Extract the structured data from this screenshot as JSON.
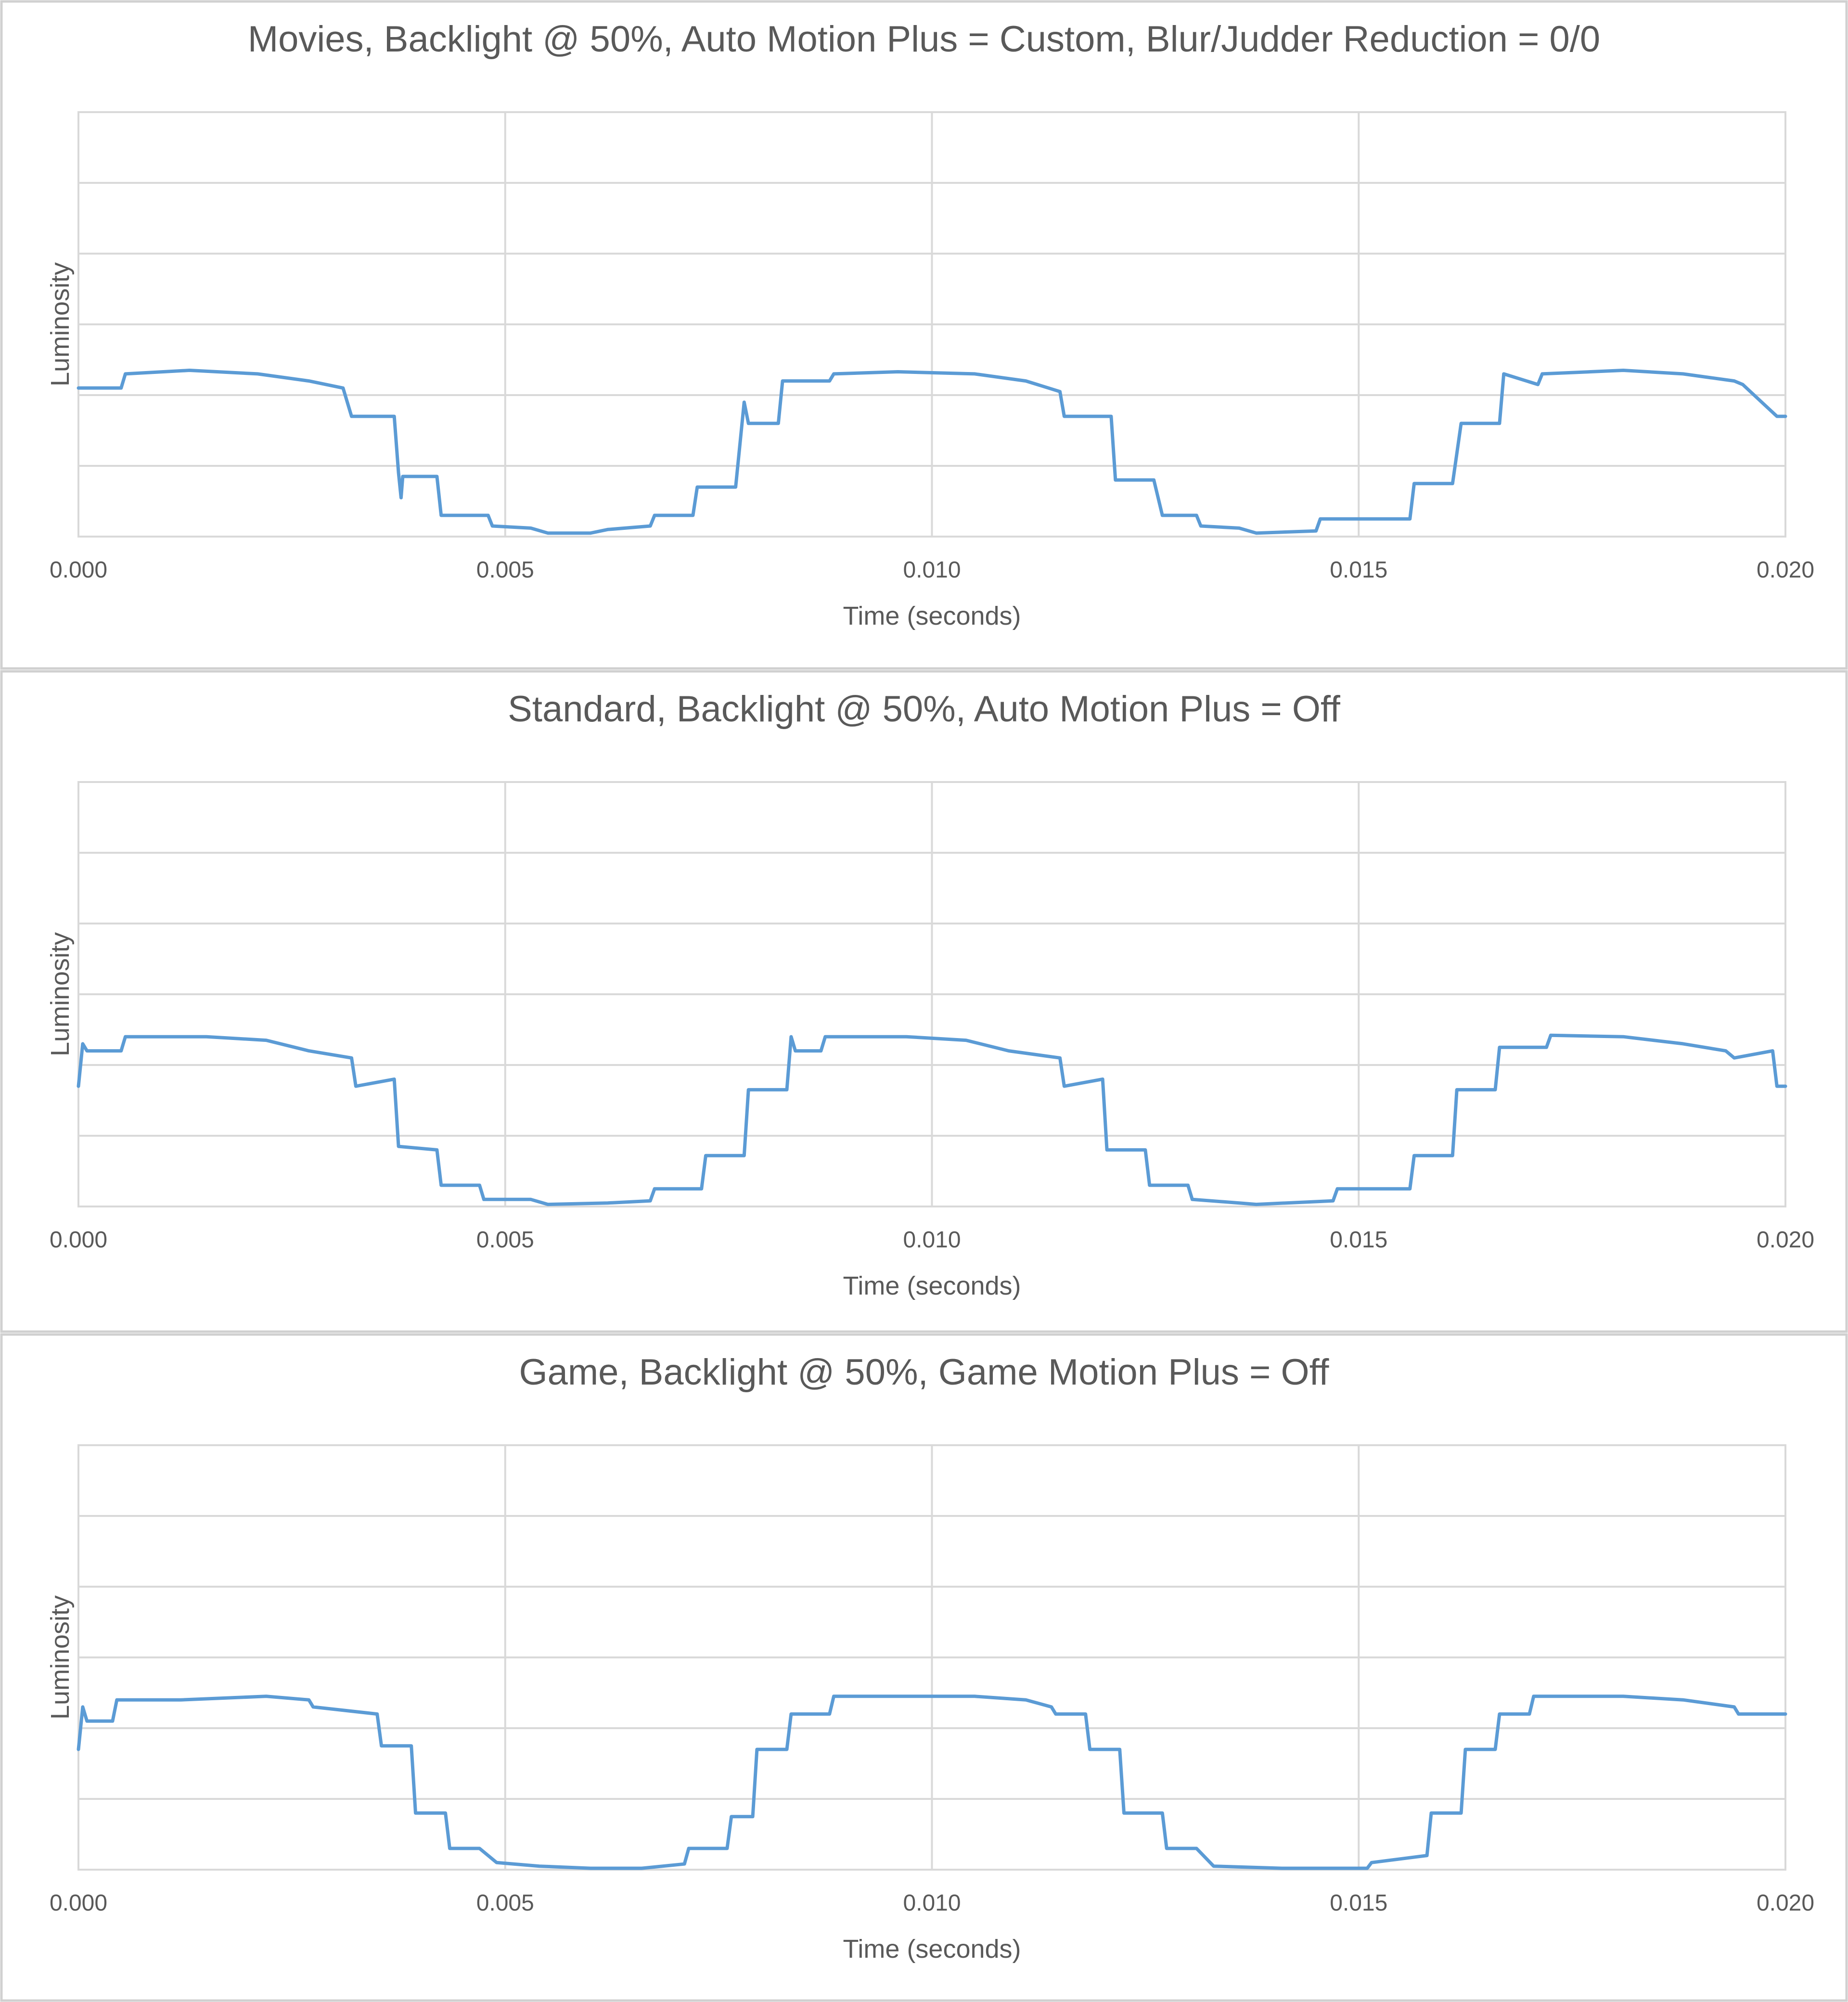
{
  "colors": {
    "line": "#5b9bd5",
    "grid": "#d9d9d9",
    "text": "#595959"
  },
  "chart_data": [
    {
      "type": "line",
      "title": "Movies, Backlight @ 50%, Auto Motion Plus = Custom, Blur/Judder Reduction = 0/0",
      "xlabel": "Time (seconds)",
      "ylabel": "Luminosity",
      "xlim": [
        0,
        0.02
      ],
      "x_ticks": [
        "0.000",
        "0.005",
        "0.010",
        "0.015",
        "0.020"
      ],
      "ylim": [
        0,
        6
      ],
      "y_gridlines": 6,
      "y_tick_labels_shown": false,
      "grid": true,
      "legend": "none",
      "series": [
        {
          "x": [
            0,
            0.0005,
            0.00055,
            0.0013,
            0.0021,
            0.0027,
            0.0031,
            0.0032,
            0.00325,
            0.0037,
            0.00375,
            0.00378,
            0.0038,
            0.0042,
            0.00425,
            0.0048,
            0.00485,
            0.0053,
            0.0055,
            0.006,
            0.0062,
            0.0067,
            0.00675,
            0.0072,
            0.00725,
            0.0077,
            0.0078,
            0.00785,
            0.0082,
            0.00825,
            0.0088,
            0.00885,
            0.0096,
            0.0105,
            0.0111,
            0.0115,
            0.01155,
            0.0121,
            0.01215,
            0.0126,
            0.0127,
            0.0131,
            0.01315,
            0.0136,
            0.0138,
            0.0145,
            0.01455,
            0.0156,
            0.01565,
            0.0161,
            0.0162,
            0.01665,
            0.0167,
            0.0171,
            0.01715,
            0.0181,
            0.0188,
            0.0194,
            0.0195,
            0.0199,
            0.02
          ],
          "y": [
            2.1,
            2.1,
            2.3,
            2.35,
            2.3,
            2.2,
            2.1,
            1.7,
            1.7,
            1.7,
            0.9,
            0.55,
            0.85,
            0.85,
            0.3,
            0.3,
            0.15,
            0.12,
            0.05,
            0.05,
            0.1,
            0.15,
            0.3,
            0.3,
            0.7,
            0.7,
            1.9,
            1.6,
            1.6,
            2.2,
            2.2,
            2.3,
            2.33,
            2.3,
            2.2,
            2.05,
            1.7,
            1.7,
            0.8,
            0.8,
            0.3,
            0.3,
            0.15,
            0.12,
            0.05,
            0.08,
            0.25,
            0.25,
            0.75,
            0.75,
            1.6,
            1.6,
            2.3,
            2.15,
            2.3,
            2.35,
            2.3,
            2.2,
            2.15,
            1.7,
            1.7
          ]
        }
      ]
    },
    {
      "type": "line",
      "title": "Standard, Backlight @ 50%, Auto Motion Plus = Off",
      "xlabel": "Time (seconds)",
      "ylabel": "Luminosity",
      "xlim": [
        0,
        0.02
      ],
      "x_ticks": [
        "0.000",
        "0.005",
        "0.010",
        "0.015",
        "0.020"
      ],
      "ylim": [
        0,
        6
      ],
      "y_gridlines": 6,
      "y_tick_labels_shown": false,
      "grid": true,
      "legend": "none",
      "series": [
        {
          "x": [
            0,
            5e-05,
            0.0001,
            0.0005,
            0.00055,
            0.0015,
            0.0022,
            0.0027,
            0.0032,
            0.00325,
            0.0037,
            0.00375,
            0.0042,
            0.00425,
            0.0047,
            0.00475,
            0.0053,
            0.0055,
            0.0062,
            0.0067,
            0.00675,
            0.0073,
            0.00735,
            0.0078,
            0.00785,
            0.0083,
            0.00835,
            0.0084,
            0.0087,
            0.00875,
            0.0097,
            0.0104,
            0.0109,
            0.0115,
            0.01155,
            0.012,
            0.01205,
            0.0125,
            0.01255,
            0.013,
            0.01305,
            0.0136,
            0.0138,
            0.0147,
            0.01475,
            0.0156,
            0.01565,
            0.0161,
            0.01615,
            0.0166,
            0.01665,
            0.0172,
            0.01725,
            0.0181,
            0.0188,
            0.0193,
            0.0194,
            0.01985,
            0.0199,
            0.02
          ],
          "y": [
            1.7,
            2.3,
            2.2,
            2.2,
            2.4,
            2.4,
            2.35,
            2.2,
            2.1,
            1.7,
            1.8,
            0.85,
            0.8,
            0.3,
            0.3,
            0.1,
            0.1,
            0.03,
            0.05,
            0.08,
            0.25,
            0.25,
            0.72,
            0.72,
            1.65,
            1.65,
            2.4,
            2.2,
            2.2,
            2.4,
            2.4,
            2.35,
            2.2,
            2.1,
            1.7,
            1.8,
            0.8,
            0.8,
            0.3,
            0.3,
            0.1,
            0.05,
            0.03,
            0.08,
            0.25,
            0.25,
            0.72,
            0.72,
            1.65,
            1.65,
            2.25,
            2.25,
            2.42,
            2.4,
            2.3,
            2.2,
            2.1,
            2.2,
            1.7,
            1.7
          ]
        }
      ]
    },
    {
      "type": "line",
      "title": "Game, Backlight @ 50%, Game Motion Plus = Off",
      "xlabel": "Time (seconds)",
      "ylabel": "Luminosity",
      "xlim": [
        0,
        0.02
      ],
      "x_ticks": [
        "0.000",
        "0.005",
        "0.010",
        "0.015",
        "0.020"
      ],
      "ylim": [
        0,
        6
      ],
      "y_gridlines": 6,
      "y_tick_labels_shown": false,
      "grid": true,
      "legend": "none",
      "series": [
        {
          "x": [
            0,
            5e-05,
            0.0001,
            0.0004,
            0.00045,
            0.0012,
            0.0022,
            0.0027,
            0.00275,
            0.0035,
            0.00355,
            0.0039,
            0.00395,
            0.0043,
            0.00435,
            0.0047,
            0.0049,
            0.0054,
            0.006,
            0.0066,
            0.0071,
            0.00715,
            0.0076,
            0.00765,
            0.0079,
            0.00795,
            0.0083,
            0.00835,
            0.0088,
            0.00885,
            0.0097,
            0.0105,
            0.0111,
            0.0114,
            0.01145,
            0.0118,
            0.01185,
            0.0122,
            0.01225,
            0.0127,
            0.01275,
            0.0131,
            0.0133,
            0.0141,
            0.0151,
            0.01515,
            0.0158,
            0.01585,
            0.0162,
            0.01625,
            0.0166,
            0.01665,
            0.017,
            0.01705,
            0.0181,
            0.0188,
            0.0194,
            0.01945,
            0.0199,
            0.02
          ],
          "y": [
            1.7,
            2.3,
            2.1,
            2.1,
            2.4,
            2.4,
            2.45,
            2.4,
            2.3,
            2.2,
            1.75,
            1.75,
            0.8,
            0.8,
            0.3,
            0.3,
            0.1,
            0.05,
            0.02,
            0.02,
            0.08,
            0.3,
            0.3,
            0.75,
            0.75,
            1.7,
            1.7,
            2.2,
            2.2,
            2.45,
            2.45,
            2.45,
            2.4,
            2.3,
            2.2,
            2.2,
            1.7,
            1.7,
            0.8,
            0.8,
            0.3,
            0.3,
            0.05,
            0.02,
            0.02,
            0.1,
            0.2,
            0.8,
            0.8,
            1.7,
            1.7,
            2.2,
            2.2,
            2.45,
            2.45,
            2.4,
            2.3,
            2.2,
            2.2,
            2.2
          ]
        }
      ]
    }
  ]
}
